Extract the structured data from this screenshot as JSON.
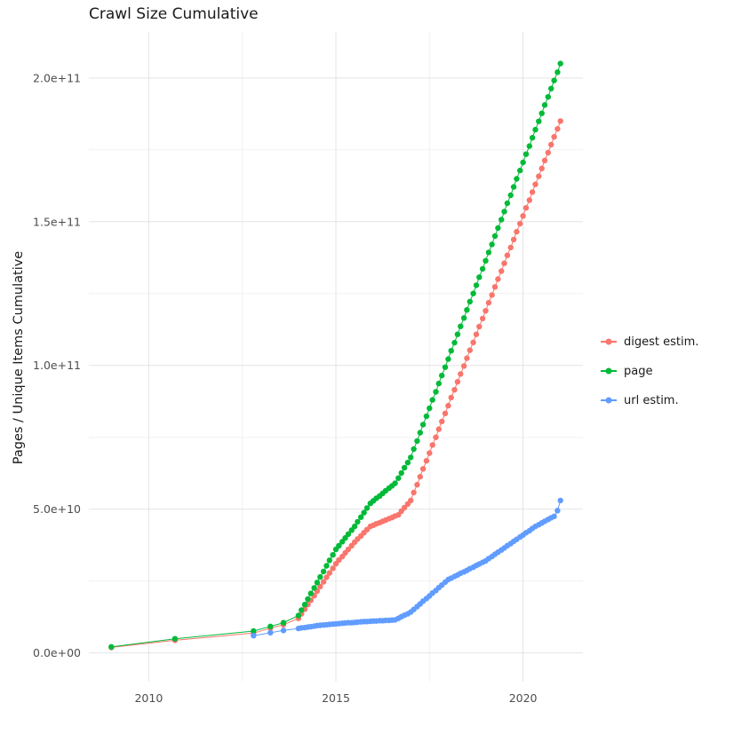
{
  "chart_data": {
    "type": "scatter",
    "title": "Crawl Size Cumulative",
    "xlabel": "",
    "ylabel": "Pages / Unique Items Cumulative",
    "grid": "on",
    "legend_position": "right",
    "xlim": [
      2008.4,
      2021.6
    ],
    "ylim": [
      -10,
      216
    ],
    "y_unit": "1e9",
    "x_ticks": {
      "values": [
        2010,
        2015,
        2020
      ],
      "labels": [
        "2010",
        "2015",
        "2020"
      ]
    },
    "x_minor_ticks": [
      2012.5,
      2017.5
    ],
    "y_ticks": {
      "values": [
        0,
        50,
        100,
        150,
        200
      ],
      "labels": [
        "0.0e+00",
        "5.0e+10",
        "1.0e+11",
        "1.5e+11",
        "2.0e+11"
      ]
    },
    "y_minor_ticks": [
      25,
      75,
      125,
      175
    ],
    "series": [
      {
        "name": "digest estim.",
        "color": "#F8766D",
        "x": [
          2009,
          2010.7,
          2012.8,
          2013.25,
          2013.6,
          2014,
          2014.08,
          2014.17,
          2014.25,
          2014.33,
          2014.42,
          2014.5,
          2014.58,
          2014.67,
          2014.75,
          2014.83,
          2014.92,
          2015,
          2015.08,
          2015.17,
          2015.25,
          2015.33,
          2015.42,
          2015.5,
          2015.58,
          2015.67,
          2015.75,
          2015.83,
          2015.92,
          2016,
          2016.08,
          2016.17,
          2016.25,
          2016.33,
          2016.42,
          2016.5,
          2016.58,
          2016.67,
          2016.75,
          2016.83,
          2016.92,
          2017,
          2017.08,
          2017.17,
          2017.25,
          2017.33,
          2017.42,
          2017.5,
          2017.58,
          2017.67,
          2017.75,
          2017.83,
          2017.92,
          2018,
          2018.08,
          2018.17,
          2018.25,
          2018.33,
          2018.42,
          2018.5,
          2018.58,
          2018.67,
          2018.75,
          2018.83,
          2018.92,
          2019,
          2019.08,
          2019.17,
          2019.25,
          2019.33,
          2019.42,
          2019.5,
          2019.58,
          2019.67,
          2019.75,
          2019.83,
          2019.92,
          2020,
          2020.08,
          2020.17,
          2020.25,
          2020.33,
          2020.42,
          2020.5,
          2020.58,
          2020.67,
          2020.75,
          2020.83,
          2020.92,
          2021
        ],
        "y": [
          1.9,
          4.4,
          6.9,
          8.6,
          9.8,
          12,
          13.6,
          15.2,
          16.8,
          18.3,
          19.9,
          21.5,
          23.1,
          24.7,
          26.3,
          27.8,
          29.4,
          31,
          32.3,
          33.5,
          34.8,
          36,
          37.3,
          38.5,
          39.6,
          40.7,
          41.8,
          42.9,
          44,
          44.4,
          44.9,
          45.3,
          45.8,
          46.2,
          46.7,
          47.1,
          47.6,
          48,
          49.3,
          50.5,
          51.8,
          53,
          55.8,
          58.5,
          61.3,
          64,
          66.8,
          69.5,
          72.3,
          75,
          77.8,
          80.5,
          83.3,
          86,
          88.8,
          91.5,
          94.3,
          97,
          99.8,
          102.5,
          105.3,
          108,
          110.8,
          113.5,
          116.3,
          119,
          121.8,
          124.5,
          127.3,
          130,
          132.8,
          135.5,
          138.3,
          141,
          143.8,
          146.5,
          149.3,
          152,
          154.8,
          157.5,
          160.3,
          163,
          165.8,
          168.5,
          171.3,
          174,
          176.8,
          179.5,
          182.3,
          185
        ]
      },
      {
        "name": "page",
        "color": "#00BA38",
        "x": [
          2009,
          2010.7,
          2012.8,
          2013.25,
          2013.6,
          2014,
          2014.08,
          2014.17,
          2014.25,
          2014.33,
          2014.42,
          2014.5,
          2014.58,
          2014.67,
          2014.75,
          2014.83,
          2014.92,
          2015,
          2015.08,
          2015.17,
          2015.25,
          2015.33,
          2015.42,
          2015.5,
          2015.58,
          2015.67,
          2015.75,
          2015.83,
          2015.92,
          2016,
          2016.08,
          2016.17,
          2016.25,
          2016.33,
          2016.42,
          2016.5,
          2016.58,
          2016.67,
          2016.75,
          2016.83,
          2016.92,
          2017,
          2017.08,
          2017.17,
          2017.25,
          2017.33,
          2017.42,
          2017.5,
          2017.58,
          2017.67,
          2017.75,
          2017.83,
          2017.92,
          2018,
          2018.08,
          2018.17,
          2018.25,
          2018.33,
          2018.42,
          2018.5,
          2018.58,
          2018.67,
          2018.75,
          2018.83,
          2018.92,
          2019,
          2019.08,
          2019.17,
          2019.25,
          2019.33,
          2019.42,
          2019.5,
          2019.58,
          2019.67,
          2019.75,
          2019.83,
          2019.92,
          2020,
          2020.08,
          2020.17,
          2020.25,
          2020.33,
          2020.42,
          2020.5,
          2020.58,
          2020.67,
          2020.75,
          2020.83,
          2020.92,
          2021
        ],
        "y": [
          2.1,
          4.9,
          7.6,
          9.2,
          10.5,
          13,
          14.9,
          16.8,
          18.7,
          20.7,
          22.6,
          24.5,
          26.4,
          28.3,
          30.3,
          32.2,
          34.1,
          36,
          37.3,
          38.7,
          40,
          41.3,
          42.7,
          44,
          45.6,
          47.2,
          48.8,
          50.4,
          52,
          52.9,
          53.8,
          54.6,
          55.5,
          56.4,
          57.3,
          58.1,
          59,
          60.8,
          62.6,
          64.4,
          66.2,
          68,
          70.9,
          73.7,
          76.6,
          79.4,
          82.3,
          85.1,
          88,
          90.8,
          93.7,
          96.5,
          99.4,
          102.2,
          105.1,
          107.9,
          110.8,
          113.6,
          116.5,
          119.3,
          122.2,
          125,
          127.9,
          130.7,
          133.6,
          136.4,
          139.3,
          142.1,
          145,
          147.8,
          150.7,
          153.5,
          156.4,
          159.2,
          162.1,
          164.9,
          167.8,
          170.6,
          173.5,
          176.3,
          179.2,
          182,
          184.9,
          187.7,
          190.6,
          193.4,
          196.3,
          199.1,
          202,
          205
        ]
      },
      {
        "name": "url estim.",
        "color": "#619CFF",
        "x": [
          2012.8,
          2013.25,
          2013.6,
          2014,
          2014.08,
          2014.17,
          2014.25,
          2014.33,
          2014.42,
          2014.5,
          2014.58,
          2014.67,
          2014.75,
          2014.83,
          2014.92,
          2015,
          2015.08,
          2015.17,
          2015.25,
          2015.33,
          2015.42,
          2015.5,
          2015.58,
          2015.67,
          2015.75,
          2015.83,
          2015.92,
          2016,
          2016.08,
          2016.17,
          2016.25,
          2016.33,
          2016.42,
          2016.5,
          2016.58,
          2016.67,
          2016.75,
          2016.83,
          2016.92,
          2017,
          2017.08,
          2017.17,
          2017.25,
          2017.33,
          2017.42,
          2017.5,
          2017.58,
          2017.67,
          2017.75,
          2017.83,
          2017.92,
          2018,
          2018.08,
          2018.17,
          2018.25,
          2018.33,
          2018.42,
          2018.5,
          2018.58,
          2018.67,
          2018.75,
          2018.83,
          2018.92,
          2019,
          2019.08,
          2019.17,
          2019.25,
          2019.33,
          2019.42,
          2019.5,
          2019.58,
          2019.67,
          2019.75,
          2019.83,
          2019.92,
          2020,
          2020.08,
          2020.17,
          2020.25,
          2020.33,
          2020.42,
          2020.5,
          2020.58,
          2020.67,
          2020.75,
          2020.83,
          2020.92,
          2021
        ],
        "y": [
          6,
          7,
          7.8,
          8.5,
          8.7,
          8.8,
          9,
          9.1,
          9.3,
          9.5,
          9.6,
          9.7,
          9.8,
          9.9,
          10,
          10.1,
          10.2,
          10.3,
          10.4,
          10.5,
          10.5,
          10.6,
          10.7,
          10.8,
          10.9,
          10.9,
          11,
          11.1,
          11.1,
          11.2,
          11.2,
          11.3,
          11.3,
          11.4,
          11.5,
          12,
          12.6,
          13.1,
          13.6,
          14.2,
          15.1,
          16.1,
          17,
          18,
          18.9,
          19.8,
          20.8,
          21.7,
          22.7,
          23.6,
          24.6,
          25.5,
          26,
          26.6,
          27.1,
          27.7,
          28.2,
          28.7,
          29.3,
          29.8,
          30.4,
          30.9,
          31.5,
          32,
          32.8,
          33.5,
          34.3,
          35,
          35.8,
          36.5,
          37.3,
          38,
          38.8,
          39.5,
          40.3,
          41,
          41.8,
          42.5,
          43.3,
          44,
          44.6,
          45.2,
          45.8,
          46.4,
          47,
          47.5,
          49.5,
          53
        ]
      }
    ]
  }
}
